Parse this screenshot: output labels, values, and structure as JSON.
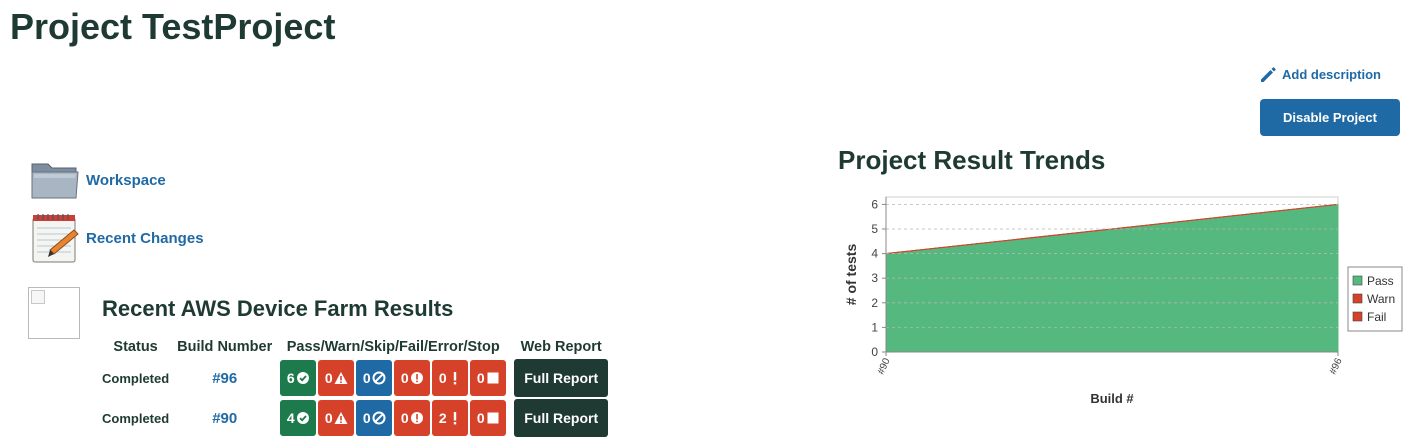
{
  "page": {
    "title": "Project TestProject",
    "add_description": "Add description",
    "disable_button": "Disable Project"
  },
  "sidebar": {
    "workspace": "Workspace",
    "recent_changes": "Recent Changes"
  },
  "results": {
    "title": "Recent AWS Device Farm Results",
    "headers": [
      "Status",
      "Build Number",
      "Pass/Warn/Skip/Fail/Error/Stop",
      "Web Report"
    ],
    "rows": [
      {
        "status": "Completed",
        "build": "#96",
        "pass": "6",
        "warn": "0",
        "skip": "0",
        "fail": "0",
        "error": "0",
        "stop": "0",
        "report": "Full Report"
      },
      {
        "status": "Completed",
        "build": "#90",
        "pass": "4",
        "warn": "0",
        "skip": "0",
        "fail": "0",
        "error": "2",
        "stop": "0",
        "report": "Full Report"
      }
    ],
    "colors": {
      "pass": "#1d7a4d",
      "warn": "#d6412a",
      "skip": "#1f6aa5",
      "fail": "#d6412a",
      "error": "#d6412a",
      "stop": "#d6412a"
    }
  },
  "chart_title": "Project Result Trends",
  "chart_data": {
    "type": "area",
    "x": [
      "#90",
      "#96"
    ],
    "series": [
      {
        "name": "Pass",
        "values": [
          4,
          6
        ],
        "color": "#55b87e"
      },
      {
        "name": "Warn",
        "values": [
          0,
          0
        ],
        "color": "#d6412a"
      },
      {
        "name": "Fail",
        "values": [
          0,
          0
        ],
        "color": "#d6412a"
      }
    ],
    "xlabel": "Build #",
    "ylabel": "# of tests",
    "ylim": [
      0,
      6.3
    ],
    "yticks": [
      0,
      1,
      2,
      3,
      4,
      5,
      6
    ],
    "legend": "right"
  }
}
